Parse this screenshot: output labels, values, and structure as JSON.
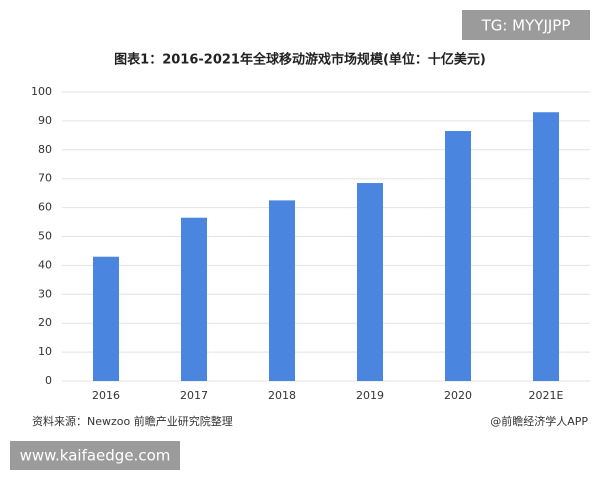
{
  "chart_data": {
    "type": "bar",
    "title": "图表1：2016-2021年全球移动游戏市场规模(单位：十亿美元)",
    "categories": [
      "2016",
      "2017",
      "2018",
      "2019",
      "2020",
      "2021E"
    ],
    "values": [
      43,
      56.5,
      62.5,
      68.5,
      86.5,
      93
    ],
    "color": "#4a86e0",
    "ylim": [
      0,
      100
    ],
    "yticks": [
      0,
      10,
      20,
      30,
      40,
      50,
      60,
      70,
      80,
      90,
      100
    ],
    "grid": true,
    "source": "资料来源：Newzoo 前瞻产业研究院整理",
    "credit": "@前瞻经济学人APP"
  },
  "overlays": {
    "top_tag": "TG: MYYJJPP",
    "bottom_tag": "www.kaifaedge.com"
  }
}
